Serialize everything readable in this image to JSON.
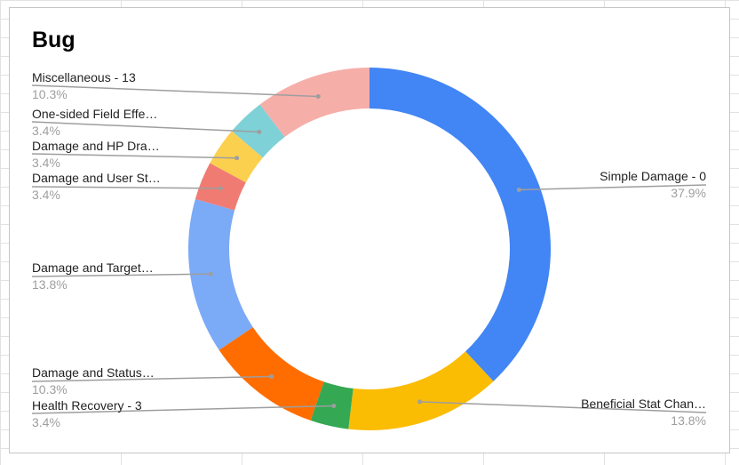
{
  "chart_data": {
    "type": "pie",
    "title": "Bug",
    "donut": true,
    "legend": "callout-labels",
    "slices": [
      {
        "label": "Simple Damage - 0",
        "percent": "37.9%",
        "value": 37.9,
        "color": "#4285f4",
        "side": "right"
      },
      {
        "label": "Beneficial Stat Chan…",
        "percent": "13.8%",
        "value": 13.8,
        "color": "#fbbc04",
        "side": "right"
      },
      {
        "label": "Health Recovery - 3",
        "percent": "3.4%",
        "value": 3.4,
        "color": "#34a853",
        "side": "left"
      },
      {
        "label": "Damage and Status…",
        "percent": "10.3%",
        "value": 10.3,
        "color": "#ff6d01",
        "side": "left"
      },
      {
        "label": "Damage and Target…",
        "percent": "13.8%",
        "value": 13.8,
        "color": "#7baaf7",
        "side": "left"
      },
      {
        "label": "Damage and User St…",
        "percent": "3.4%",
        "value": 3.4,
        "color": "#f07b72",
        "side": "left"
      },
      {
        "label": "Damage and HP Dra…",
        "percent": "3.4%",
        "value": 3.4,
        "color": "#fcd04f",
        "side": "left"
      },
      {
        "label": "One-sided Field Effe…",
        "percent": "3.4%",
        "value": 3.4,
        "color": "#7ed1d7",
        "side": "left"
      },
      {
        "label": "Miscellaneous - 13",
        "percent": "10.3%",
        "value": 10.3,
        "color": "#f6aea9",
        "side": "left"
      }
    ]
  }
}
